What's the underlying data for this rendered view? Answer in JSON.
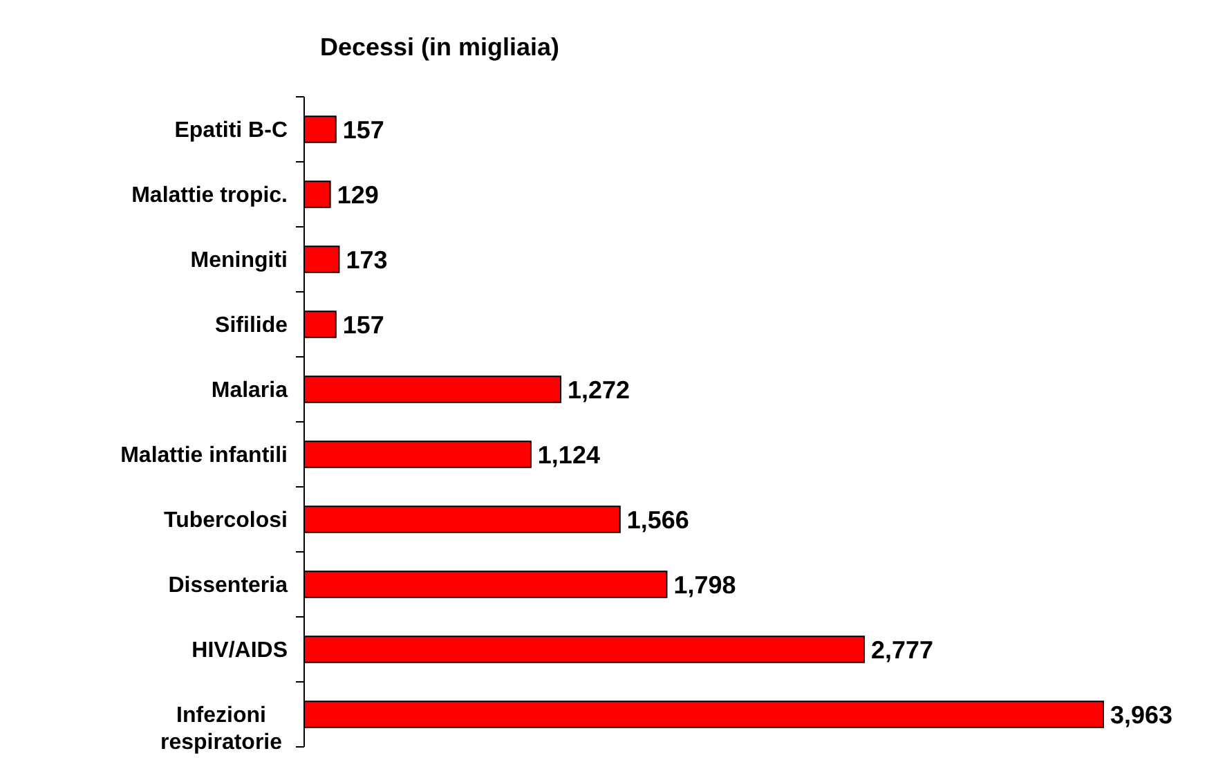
{
  "chart_data": {
    "type": "bar",
    "orientation": "horizontal",
    "title": "Decessi (in migliaia)",
    "categories": [
      "Epatiti B-C",
      "Malattie tropic.",
      "Meningiti",
      "Sifilide",
      "Malaria",
      "Malattie infantili",
      "Tubercolosi",
      "Dissenteria",
      "HIV/AIDS",
      "Infezioni respiratorie"
    ],
    "values": [
      157,
      129,
      173,
      157,
      1272,
      1124,
      1566,
      1798,
      2777,
      3963
    ],
    "value_labels": [
      "157",
      "129",
      "173",
      "157",
      "1,272",
      "1,124",
      "1,566",
      "1,798",
      "2,777",
      "3,963"
    ],
    "color": "#ff0000"
  }
}
